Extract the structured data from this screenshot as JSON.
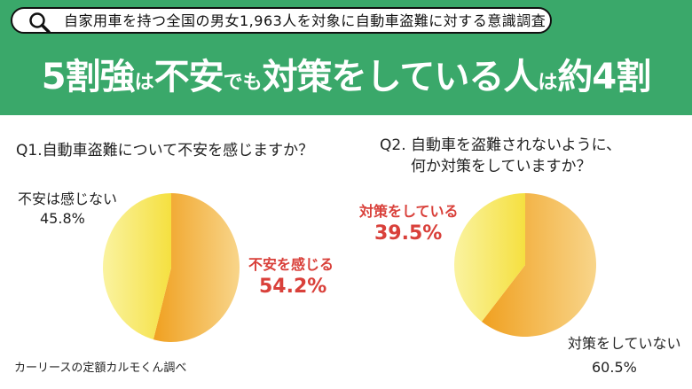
{
  "header": {
    "survey_note": "自家用車を持つ全国の男女1,963人を対象に自動車盗難に対する意識調査",
    "headline": [
      {
        "text": "5割強",
        "size": "big"
      },
      {
        "text": "は",
        "size": "small"
      },
      {
        "text": "不安",
        "size": "big"
      },
      {
        "text": "でも",
        "size": "small"
      },
      {
        "text": "対策をしている人",
        "size": "big"
      },
      {
        "text": "は",
        "size": "small"
      },
      {
        "text": "約4割",
        "size": "big"
      }
    ]
  },
  "q1": {
    "title": "Q1.自動車盗難について不安を感じますか？"
  },
  "q2": {
    "title_line1": "Q2.  自動車を盗難されないように、",
    "title_line2": "何か対策をしていますか？"
  },
  "source": "カーリースの定額カルモくん調べ",
  "colors": {
    "banner": "#3aa86a",
    "highlight_text": "#d9403a",
    "orange_dark": "#f0a020",
    "orange_light": "#f8d58a",
    "yellow_light": "#faf3a0",
    "yellow_dark": "#f5e040"
  },
  "chart_data": [
    {
      "type": "pie",
      "title": "Q1.自動車盗難について不安を感じますか？",
      "slices": [
        {
          "label": "不安を感じる",
          "value": 54.2,
          "display": "54.2%"
        },
        {
          "label": "不安は感じない",
          "value": 45.8,
          "display": "45.8%"
        }
      ]
    },
    {
      "type": "pie",
      "title": "Q2. 自動車を盗難されないように、何か対策をしていますか？",
      "slices": [
        {
          "label": "対策をしていない",
          "value": 60.5,
          "display": "60.5%"
        },
        {
          "label": "対策をしている",
          "value": 39.5,
          "display": "39.5%"
        }
      ]
    }
  ]
}
